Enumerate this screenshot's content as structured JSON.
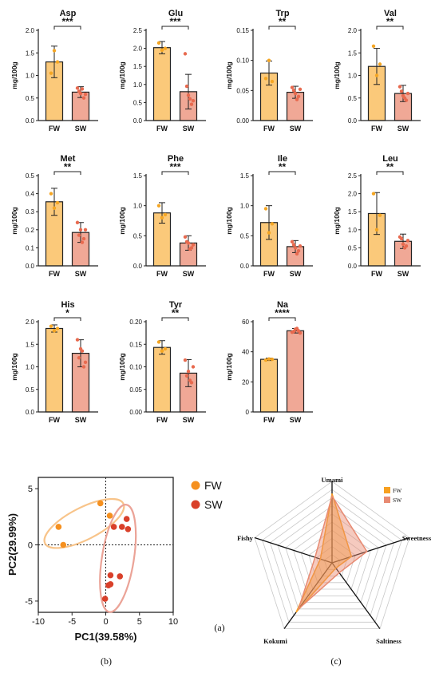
{
  "panel_labels": {
    "a": "(a)",
    "b": "(b)",
    "c": "(c)"
  },
  "chart_data": [
    {
      "type": "bar",
      "title": "Asp",
      "ylabel": "mg/100g",
      "categories": [
        "FW",
        "SW"
      ],
      "values": [
        1.3,
        0.63
      ],
      "errors": [
        0.35,
        0.12
      ],
      "points": [
        [
          1.05,
          1.55,
          1.3
        ],
        [
          0.72,
          0.6,
          0.5,
          0.65,
          0.7,
          0.58
        ]
      ],
      "yticks": [
        "0.0",
        "0.5",
        "1.0",
        "1.5",
        "2.0"
      ],
      "ylim": [
        0,
        2.0
      ],
      "significance": "***"
    },
    {
      "type": "bar",
      "title": "Glu",
      "ylabel": "mg/100g",
      "categories": [
        "FW",
        "SW"
      ],
      "values": [
        2.02,
        0.8
      ],
      "errors": [
        0.17,
        0.48
      ],
      "points": [
        [
          2.15,
          1.95,
          2.0
        ],
        [
          1.85,
          0.7,
          0.45,
          0.95,
          0.6,
          0.55
        ]
      ],
      "yticks": [
        "0.0",
        "0.5",
        "1.0",
        "1.5",
        "2.0",
        "2.5"
      ],
      "ylim": [
        0,
        2.5
      ],
      "significance": "***"
    },
    {
      "type": "bar",
      "title": "Trp",
      "ylabel": "mg/100g",
      "categories": [
        "FW",
        "SW"
      ],
      "values": [
        0.079,
        0.047
      ],
      "errors": [
        0.02,
        0.01
      ],
      "points": [
        [
          0.07,
          0.1,
          0.065
        ],
        [
          0.055,
          0.045,
          0.04,
          0.05,
          0.035,
          0.052
        ]
      ],
      "yticks": [
        "0.00",
        "0.05",
        "0.10",
        "0.15"
      ],
      "ylim": [
        0,
        0.15
      ],
      "significance": "**"
    },
    {
      "type": "bar",
      "title": "Val",
      "ylabel": "mg/100g",
      "categories": [
        "FW",
        "SW"
      ],
      "values": [
        1.2,
        0.6
      ],
      "errors": [
        0.4,
        0.18
      ],
      "points": [
        [
          1.65,
          1.0,
          1.25
        ],
        [
          0.75,
          0.55,
          0.45,
          0.65,
          0.5,
          0.6
        ]
      ],
      "yticks": [
        "0.0",
        "0.5",
        "1.0",
        "1.5",
        "2.0"
      ],
      "ylim": [
        0,
        2.0
      ],
      "significance": "**"
    },
    {
      "type": "bar",
      "title": "Met",
      "ylabel": "mg/100g",
      "categories": [
        "FW",
        "SW"
      ],
      "values": [
        0.355,
        0.185
      ],
      "errors": [
        0.075,
        0.055
      ],
      "points": [
        [
          0.4,
          0.32,
          0.35
        ],
        [
          0.24,
          0.2,
          0.15,
          0.17,
          0.13,
          0.2
        ]
      ],
      "yticks": [
        "0.0",
        "0.1",
        "0.2",
        "0.3",
        "0.4",
        "0.5"
      ],
      "ylim": [
        0,
        0.5
      ],
      "significance": "**"
    },
    {
      "type": "bar",
      "title": "Phe",
      "ylabel": "mg/100g",
      "categories": [
        "FW",
        "SW"
      ],
      "values": [
        0.88,
        0.38
      ],
      "errors": [
        0.17,
        0.12
      ],
      "points": [
        [
          1.0,
          0.8,
          0.85
        ],
        [
          0.48,
          0.38,
          0.3,
          0.4,
          0.28,
          0.35
        ]
      ],
      "yticks": [
        "0.0",
        "0.5",
        "1.0",
        "1.5"
      ],
      "ylim": [
        0,
        1.5
      ],
      "significance": "***"
    },
    {
      "type": "bar",
      "title": "Ile",
      "ylabel": "mg/100g",
      "categories": [
        "FW",
        "SW"
      ],
      "values": [
        0.72,
        0.32
      ],
      "errors": [
        0.28,
        0.1
      ],
      "points": [
        [
          0.95,
          0.55,
          0.7
        ],
        [
          0.4,
          0.3,
          0.25,
          0.35,
          0.2,
          0.33
        ]
      ],
      "yticks": [
        "0.0",
        "0.5",
        "1.0",
        "1.5"
      ],
      "ylim": [
        0,
        1.5
      ],
      "significance": "**"
    },
    {
      "type": "bar",
      "title": "Leu",
      "ylabel": "mg/100g",
      "categories": [
        "FW",
        "SW"
      ],
      "values": [
        1.45,
        0.68
      ],
      "errors": [
        0.58,
        0.2
      ],
      "points": [
        [
          2.0,
          1.0,
          1.4
        ],
        [
          0.8,
          0.6,
          0.55,
          0.75,
          0.5,
          0.7
        ]
      ],
      "yticks": [
        "0.0",
        "0.5",
        "1.0",
        "1.5",
        "2.0",
        "2.5"
      ],
      "ylim": [
        0,
        2.5
      ],
      "significance": "**"
    },
    {
      "type": "bar",
      "title": "His",
      "ylabel": "mg/100g",
      "categories": [
        "FW",
        "SW"
      ],
      "values": [
        1.85,
        1.3
      ],
      "errors": [
        0.08,
        0.3
      ],
      "points": [
        [
          1.9,
          1.8,
          1.85
        ],
        [
          1.6,
          1.4,
          1.0,
          1.2,
          1.35,
          1.1
        ]
      ],
      "yticks": [
        "0.0",
        "0.5",
        "1.0",
        "1.5",
        "2.0"
      ],
      "ylim": [
        0,
        2.0
      ],
      "significance": "*"
    },
    {
      "type": "bar",
      "title": "Tyr",
      "ylabel": "mg/100g",
      "categories": [
        "FW",
        "SW"
      ],
      "values": [
        0.143,
        0.086
      ],
      "errors": [
        0.015,
        0.03
      ],
      "points": [
        [
          0.155,
          0.135,
          0.14
        ],
        [
          0.115,
          0.09,
          0.065,
          0.08,
          0.07,
          0.1
        ]
      ],
      "yticks": [
        "0.00",
        "0.05",
        "0.10",
        "0.15",
        "0.20"
      ],
      "ylim": [
        0,
        0.2
      ],
      "significance": "**"
    },
    {
      "type": "bar",
      "title": "Na",
      "ylabel": "mg/100g",
      "categories": [
        "FW",
        "SW"
      ],
      "values": [
        35,
        54
      ],
      "errors": [
        0.8,
        1.5
      ],
      "points": [
        [
          34.5,
          35.2,
          35.0
        ],
        [
          53,
          55,
          54,
          53.5,
          55.5,
          52.5
        ]
      ],
      "yticks": [
        "0",
        "20",
        "40",
        "60"
      ],
      "ylim": [
        0,
        60
      ],
      "significance": "****"
    },
    {
      "type": "scatter",
      "xlabel": "PC1(39.58%)",
      "ylabel": "PC2(29.99%)",
      "xlim": [
        -10,
        10
      ],
      "ylim": [
        -6,
        6
      ],
      "xticks": [
        "-10",
        "-5",
        "0",
        "5",
        "10"
      ],
      "yticks": [
        "5",
        "0",
        "-5"
      ],
      "series": [
        {
          "name": "FW",
          "color": "#f5901f",
          "points": [
            [
              -7,
              1.6
            ],
            [
              -6.3,
              0.0
            ],
            [
              -0.8,
              3.7
            ],
            [
              0.6,
              2.6
            ]
          ]
        },
        {
          "name": "SW",
          "color": "#d9402a",
          "points": [
            [
              1.2,
              1.6
            ],
            [
              2.4,
              1.6
            ],
            [
              3.1,
              2.3
            ],
            [
              3.3,
              1.4
            ],
            [
              0.7,
              -2.7
            ],
            [
              2.1,
              -2.8
            ],
            [
              0.7,
              -3.5
            ],
            [
              0.4,
              -3.6
            ],
            [
              -0.1,
              -4.8
            ]
          ]
        }
      ]
    },
    {
      "type": "radar",
      "axes": [
        "Umami",
        "Sweetness",
        "Saltiness",
        "Kokumi",
        "Fishy"
      ],
      "series": [
        {
          "name": "FW",
          "color": "#f7a020",
          "values": [
            0.85,
            0.25,
            0.08,
            0.75,
            0.15
          ]
        },
        {
          "name": "SW",
          "color": "#e88a72",
          "values": [
            0.82,
            0.45,
            0.15,
            0.7,
            0.22
          ]
        }
      ]
    }
  ]
}
